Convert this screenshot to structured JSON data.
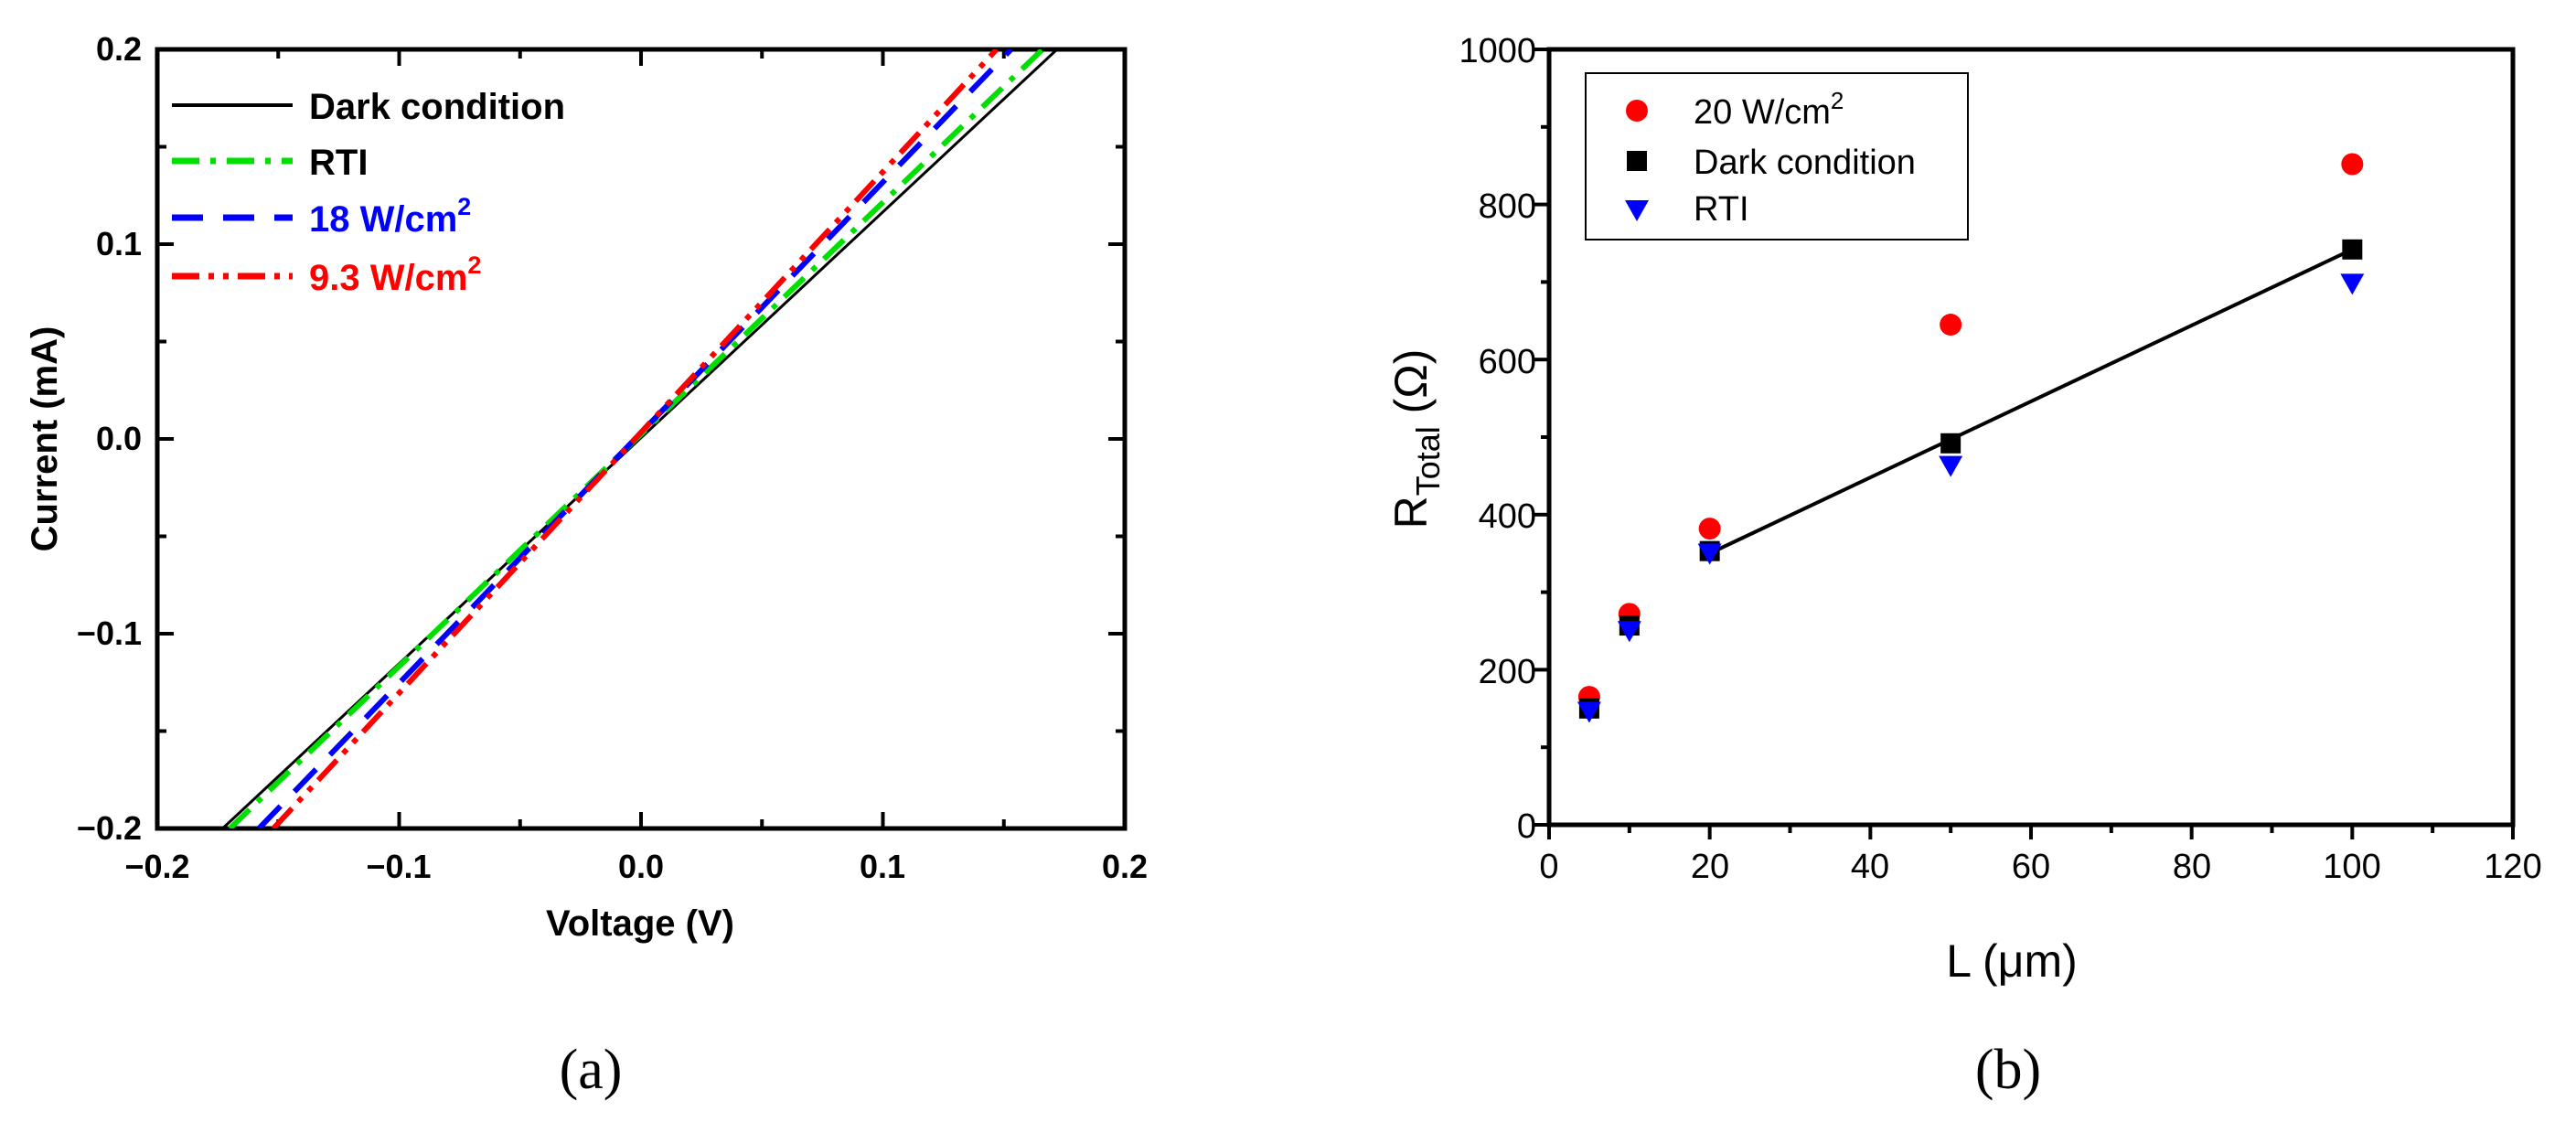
{
  "chart_data": [
    {
      "type": "line",
      "panel_label": "(a)",
      "xlabel": "Voltage (V)",
      "ylabel": "Current (mA)",
      "xlim": [
        -0.2,
        0.2
      ],
      "ylim": [
        -0.2,
        0.2
      ],
      "xticks": [
        "−0.2",
        "−0.1",
        "0.0",
        "0.1",
        "0.2"
      ],
      "yticks": [
        "−0.2",
        "−0.1",
        "0.0",
        "0.1",
        "0.2"
      ],
      "legend_position": "top-left",
      "series": [
        {
          "name": "Dark condition",
          "color": "#000000",
          "style": "solid",
          "x": [
            -0.173,
            0.172
          ],
          "y": [
            -0.2,
            0.2
          ]
        },
        {
          "name": "RTI",
          "color": "#00e000",
          "style": "dash-dot",
          "x": [
            -0.17,
            0.166
          ],
          "y": [
            -0.2,
            0.2
          ]
        },
        {
          "name": "18 W/cm",
          "superscript": "2",
          "color": "#0000ff",
          "style": "dash",
          "x": [
            -0.158,
            0.153
          ],
          "y": [
            -0.2,
            0.2
          ]
        },
        {
          "name": "9.3 W/cm",
          "superscript": "2",
          "color": "#ff0000",
          "style": "dash-dot-dot",
          "x": [
            -0.152,
            0.147
          ],
          "y": [
            -0.2,
            0.2
          ]
        }
      ]
    },
    {
      "type": "scatter",
      "panel_label": "(b)",
      "xlabel": "L (μm)",
      "ylabel": "R",
      "ylabel_subscript": "Total",
      "ylabel_unit": " (Ω)",
      "xlim": [
        0,
        120
      ],
      "ylim": [
        0,
        1000
      ],
      "xticks": [
        "0",
        "20",
        "40",
        "60",
        "80",
        "100",
        "120"
      ],
      "yticks": [
        "0",
        "200",
        "400",
        "600",
        "800",
        "1000"
      ],
      "legend_position": "top-left",
      "series": [
        {
          "name": "20 W/cm",
          "superscript": "2",
          "color": "#ff0000",
          "marker": "circle",
          "x": [
            5,
            10,
            20,
            50,
            100
          ],
          "y": [
            165,
            272,
            382,
            645,
            852
          ]
        },
        {
          "name": "Dark condition",
          "color": "#000000",
          "marker": "square",
          "x": [
            5,
            10,
            20,
            50,
            100
          ],
          "y": [
            150,
            257,
            353,
            492,
            742
          ]
        },
        {
          "name": "RTI",
          "color": "#0000ff",
          "marker": "triangle-down",
          "x": [
            5,
            10,
            20,
            50,
            100
          ],
          "y": [
            148,
            252,
            352,
            465,
            700
          ]
        }
      ],
      "fit_line": {
        "color": "#000000",
        "x": [
          20,
          100
        ],
        "y": [
          350,
          742
        ]
      }
    }
  ]
}
